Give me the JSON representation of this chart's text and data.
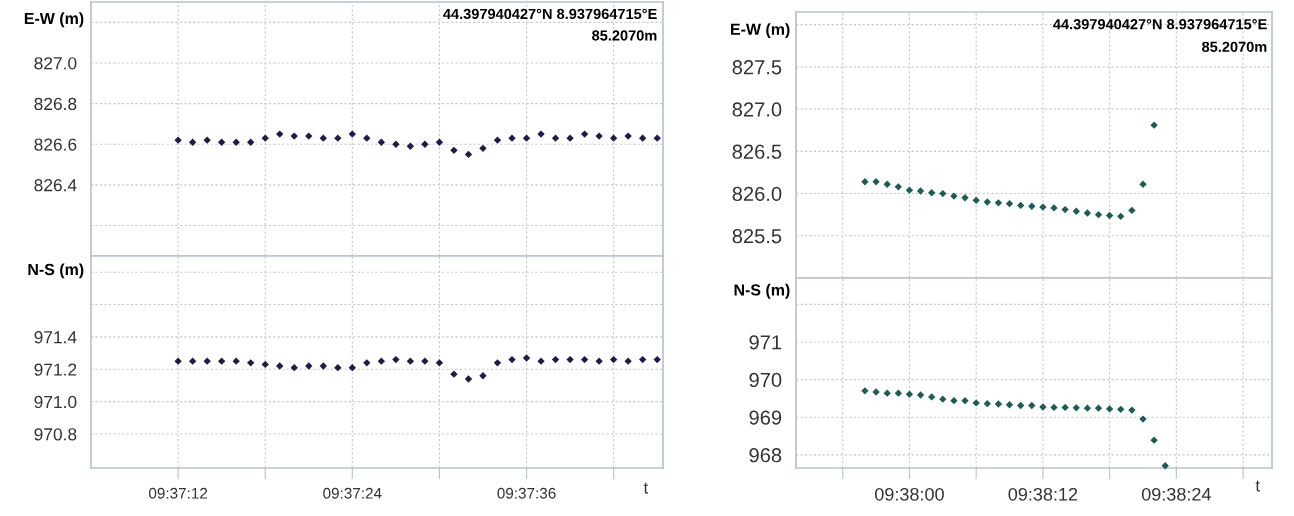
{
  "chart_data": [
    {
      "type": "scatter",
      "ylabel": "E-W (m)",
      "annotations": [
        "44.397940427°N 8.937964715°E",
        "85.2070m"
      ],
      "marker": "diamond",
      "grid": true,
      "tick_labels": "y",
      "x": [
        9.62,
        9.620278,
        9.620556,
        9.620833,
        9.621111,
        9.621389,
        9.621667,
        9.621944,
        9.622222,
        9.6225,
        9.622778,
        9.623056,
        9.623333,
        9.623611,
        9.623889,
        9.624167,
        9.624444,
        9.624722,
        9.625,
        9.625278,
        9.625556,
        9.625833,
        9.626111,
        9.626389,
        9.626667,
        9.626944,
        9.627222,
        9.6275,
        9.627778,
        9.628056,
        9.628333,
        9.628611,
        9.628889,
        9.629167
      ],
      "xlim": [
        9.618333,
        9.629278
      ],
      "xticks": [
        {
          "value": 9.62,
          "label": null
        },
        {
          "value": 9.621667,
          "label": null
        },
        {
          "value": 9.623333,
          "label": null
        },
        {
          "value": 9.625,
          "label": null
        },
        {
          "value": 9.626667,
          "label": null
        },
        {
          "value": 9.628333,
          "label": null
        }
      ],
      "ylim": [
        826.05,
        827.3
      ],
      "yticks": [
        {
          "value": 826.2,
          "label": null
        },
        {
          "value": 826.4,
          "label": "826.4"
        },
        {
          "value": 826.6,
          "label": "826.6"
        },
        {
          "value": 826.8,
          "label": "826.8"
        },
        {
          "value": 827.0,
          "label": "827.0"
        },
        {
          "value": 827.2,
          "label": null
        }
      ],
      "series": [
        {
          "color": "#1f1a4a",
          "values": [
            826.62,
            826.61,
            826.62,
            826.61,
            826.61,
            826.61,
            826.63,
            826.65,
            826.64,
            826.64,
            826.63,
            826.63,
            826.65,
            826.63,
            826.61,
            826.6,
            826.59,
            826.6,
            826.61,
            826.57,
            826.55,
            826.58,
            826.62,
            826.63,
            826.63,
            826.65,
            826.63,
            826.63,
            826.65,
            826.64,
            826.63,
            826.64,
            826.63,
            826.63
          ]
        }
      ]
    },
    {
      "type": "scatter",
      "ylabel": "N-S (m)",
      "xlabel": "t",
      "marker": "diamond",
      "grid": true,
      "x": [
        9.62,
        9.620278,
        9.620556,
        9.620833,
        9.621111,
        9.621389,
        9.621667,
        9.621944,
        9.622222,
        9.6225,
        9.622778,
        9.623056,
        9.623333,
        9.623611,
        9.623889,
        9.624167,
        9.624444,
        9.624722,
        9.625,
        9.625278,
        9.625556,
        9.625833,
        9.626111,
        9.626389,
        9.626667,
        9.626944,
        9.627222,
        9.6275,
        9.627778,
        9.628056,
        9.628333,
        9.628611,
        9.628889,
        9.629167
      ],
      "xlim": [
        9.618333,
        9.629278
      ],
      "xticks": [
        {
          "value": 9.62,
          "label": "09:37:12"
        },
        {
          "value": 9.621667,
          "label": null
        },
        {
          "value": 9.623333,
          "label": "09:37:24"
        },
        {
          "value": 9.625,
          "label": null
        },
        {
          "value": 9.626667,
          "label": "09:37:36"
        },
        {
          "value": 9.628333,
          "label": null
        }
      ],
      "ylim": [
        970.59,
        971.9
      ],
      "yticks": [
        {
          "value": 970.8,
          "label": "970.8"
        },
        {
          "value": 971.0,
          "label": "971.0"
        },
        {
          "value": 971.2,
          "label": "971.2"
        },
        {
          "value": 971.4,
          "label": "971.4"
        },
        {
          "value": 971.6,
          "label": null
        },
        {
          "value": 971.8,
          "label": null
        }
      ],
      "series": [
        {
          "color": "#1f1a4a",
          "values": [
            971.25,
            971.25,
            971.25,
            971.25,
            971.25,
            971.24,
            971.23,
            971.22,
            971.21,
            971.22,
            971.22,
            971.21,
            971.21,
            971.24,
            971.25,
            971.26,
            971.25,
            971.25,
            971.24,
            971.17,
            971.14,
            971.16,
            971.24,
            971.26,
            971.27,
            971.25,
            971.26,
            971.26,
            971.26,
            971.25,
            971.26,
            971.25,
            971.26,
            971.26
          ]
        }
      ]
    },
    {
      "type": "scatter",
      "ylabel": "E-W (m)",
      "annotations": [
        "44.397940427°N 8.937964715°E",
        "85.2070m"
      ],
      "marker": "diamond",
      "grid": true,
      "tick_labels": "y",
      "x": [
        9.632222,
        9.6325,
        9.632778,
        9.633056,
        9.633333,
        9.633611,
        9.633889,
        9.634167,
        9.634444,
        9.634722,
        9.635,
        9.635278,
        9.635556,
        9.635833,
        9.636111,
        9.636389,
        9.636667,
        9.636944,
        9.637222,
        9.6375,
        9.637778,
        9.638056,
        9.638333,
        9.638611,
        9.638889,
        9.639167,
        9.639444
      ],
      "xlim": [
        9.6305,
        9.642389
      ],
      "xticks": [
        {
          "value": 9.631667,
          "label": null
        },
        {
          "value": 9.633333,
          "label": null
        },
        {
          "value": 9.635,
          "label": null
        },
        {
          "value": 9.636667,
          "label": null
        },
        {
          "value": 9.638333,
          "label": null
        },
        {
          "value": 9.64,
          "label": null
        },
        {
          "value": 9.641667,
          "label": null
        }
      ],
      "ylim": [
        825.0,
        828.15
      ],
      "yticks": [
        {
          "value": 825.5,
          "label": "825.5"
        },
        {
          "value": 826.0,
          "label": "826.0"
        },
        {
          "value": 826.5,
          "label": "826.5"
        },
        {
          "value": 827.0,
          "label": "827.0"
        },
        {
          "value": 827.5,
          "label": "827.5"
        },
        {
          "value": 828.0,
          "label": null
        }
      ],
      "series": [
        {
          "color": "#1a5e55",
          "values": [
            826.14,
            826.14,
            826.11,
            826.08,
            826.04,
            826.03,
            826.01,
            826.0,
            825.97,
            825.95,
            825.92,
            825.9,
            825.89,
            825.88,
            825.86,
            825.85,
            825.84,
            825.83,
            825.81,
            825.79,
            825.77,
            825.75,
            825.74,
            825.73,
            825.8,
            826.11,
            826.81
          ]
        }
      ]
    },
    {
      "type": "scatter",
      "ylabel": "N-S (m)",
      "xlabel": "t",
      "marker": "diamond",
      "grid": true,
      "x": [
        9.632222,
        9.6325,
        9.632778,
        9.633056,
        9.633333,
        9.633611,
        9.633889,
        9.634167,
        9.634444,
        9.634722,
        9.635,
        9.635278,
        9.635556,
        9.635833,
        9.636111,
        9.636389,
        9.636667,
        9.636944,
        9.637222,
        9.6375,
        9.637778,
        9.638056,
        9.638333,
        9.638611,
        9.638889,
        9.639167,
        9.639444,
        9.639722
      ],
      "xlim": [
        9.6305,
        9.642389
      ],
      "xticks": [
        {
          "value": 9.631667,
          "label": null
        },
        {
          "value": 9.633333,
          "label": "09:38:00"
        },
        {
          "value": 9.635,
          "label": null
        },
        {
          "value": 9.636667,
          "label": "09:38:12"
        },
        {
          "value": 9.638333,
          "label": null
        },
        {
          "value": 9.64,
          "label": "09:38:24"
        },
        {
          "value": 9.641667,
          "label": null
        }
      ],
      "ylim": [
        967.65,
        972.7
      ],
      "yticks": [
        968,
        969,
        970,
        971,
        {
          "value": 972,
          "label": null
        }
      ],
      "series": [
        {
          "color": "#1a5e55",
          "values": [
            969.7,
            969.67,
            969.64,
            969.64,
            969.61,
            969.59,
            969.54,
            969.48,
            969.44,
            969.44,
            969.38,
            969.36,
            969.35,
            969.33,
            969.31,
            969.31,
            969.27,
            969.26,
            969.26,
            969.25,
            969.24,
            969.24,
            969.22,
            969.21,
            969.19,
            968.95,
            968.39,
            967.71
          ]
        }
      ]
    }
  ]
}
